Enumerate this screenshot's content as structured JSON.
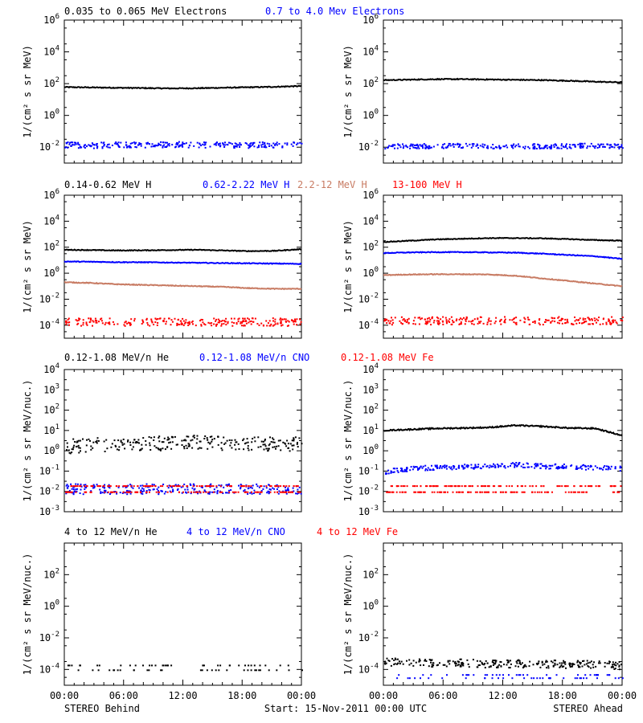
{
  "colors": {
    "black": "#000000",
    "blue": "#0000ff",
    "brown": "#c87b63",
    "red": "#ff0000"
  },
  "footer": {
    "left": "STEREO Behind",
    "center": "Start: 15-Nov-2011 00:00 UTC",
    "right": "STEREO Ahead"
  },
  "x_ticks": [
    "00:00",
    "06:00",
    "12:00",
    "18:00",
    "00:00"
  ],
  "chart_data": [
    {
      "type": "scatter",
      "row": 1,
      "position": "left",
      "scale_y": "log",
      "ylabel": "1/(cm² s sr MeV)",
      "ylim_exp": [
        -3,
        6
      ],
      "tick_exps": [
        -2,
        0,
        2,
        4,
        6
      ],
      "x": "24 h from 15-Nov-2011 00:00 UTC",
      "series": [
        {
          "name": "0.035 to 0.065 MeV Electrons",
          "color": "black",
          "legend": true,
          "style": "line",
          "log10_values": [
            1.78,
            1.76,
            1.74,
            1.72,
            1.7,
            1.71,
            1.74,
            1.77,
            1.8,
            1.85
          ]
        },
        {
          "name": "0.7 to 4.0 Mev Electrons",
          "color": "blue",
          "legend": true,
          "style": "scatter",
          "log10_values": [
            -1.8,
            -1.85,
            -1.8,
            -1.82,
            -1.78,
            -1.82,
            -1.8,
            -1.83,
            -1.8,
            -1.82
          ],
          "scatter": 0.18
        }
      ]
    },
    {
      "type": "scatter",
      "row": 1,
      "position": "right",
      "scale_y": "log",
      "ylabel": "1/(cm² s sr MeV)",
      "ylim_exp": [
        -3,
        6
      ],
      "tick_exps": [
        -2,
        0,
        2,
        4,
        6
      ],
      "x": "24 h from 15-Nov-2011 00:00 UTC",
      "series": [
        {
          "name": "0.035 to 0.065 MeV Electrons",
          "color": "black",
          "legend": false,
          "style": "line",
          "log10_values": [
            2.22,
            2.25,
            2.28,
            2.28,
            2.26,
            2.24,
            2.22,
            2.18,
            2.12,
            2.08
          ]
        },
        {
          "name": "0.7 to 4.0 Mev Electrons",
          "color": "blue",
          "legend": false,
          "style": "scatter",
          "log10_values": [
            -1.9,
            -1.88,
            -1.9,
            -1.85,
            -1.9,
            -1.88,
            -1.9,
            -1.88,
            -1.85,
            -1.9
          ],
          "scatter": 0.15
        }
      ]
    },
    {
      "type": "scatter",
      "row": 2,
      "position": "left",
      "scale_y": "log",
      "ylabel": "1/(cm² s sr MeV)",
      "ylim_exp": [
        -5,
        6
      ],
      "tick_exps": [
        -4,
        -2,
        0,
        2,
        4,
        6
      ],
      "x": "24 h from 15-Nov-2011 00:00 UTC",
      "series": [
        {
          "name": "0.14-0.62 MeV H",
          "color": "black",
          "legend": true,
          "style": "line",
          "log10_values": [
            1.8,
            1.78,
            1.75,
            1.76,
            1.78,
            1.8,
            1.75,
            1.7,
            1.72,
            1.85
          ]
        },
        {
          "name": "0.62-2.22 MeV H",
          "color": "blue",
          "legend": true,
          "style": "line",
          "log10_values": [
            0.9,
            0.88,
            0.85,
            0.84,
            0.82,
            0.8,
            0.78,
            0.76,
            0.74,
            0.72
          ]
        },
        {
          "name": "2.2-12 MeV H",
          "color": "brown",
          "legend": true,
          "style": "line",
          "log10_values": [
            -0.7,
            -0.75,
            -0.85,
            -0.9,
            -0.95,
            -1.0,
            -1.05,
            -1.15,
            -1.2,
            -1.2
          ]
        },
        {
          "name": "13-100 MeV H",
          "color": "red",
          "legend": true,
          "style": "scatter",
          "log10_values": [
            -3.7,
            -3.7,
            -3.7,
            -3.7,
            -3.7,
            -3.7,
            -3.7,
            -3.7,
            -3.7,
            -3.7
          ],
          "scatter": 0.3
        }
      ]
    },
    {
      "type": "scatter",
      "row": 2,
      "position": "right",
      "scale_y": "log",
      "ylabel": "1/(cm² s sr MeV)",
      "ylim_exp": [
        -5,
        6
      ],
      "tick_exps": [
        -4,
        -2,
        0,
        2,
        4,
        6
      ],
      "x": "24 h from 15-Nov-2011 00:00 UTC",
      "series": [
        {
          "name": "0.14-0.62 MeV H",
          "color": "black",
          "legend": false,
          "style": "line",
          "log10_values": [
            2.4,
            2.5,
            2.6,
            2.65,
            2.7,
            2.7,
            2.68,
            2.62,
            2.55,
            2.5
          ]
        },
        {
          "name": "0.62-2.22 MeV H",
          "color": "blue",
          "legend": false,
          "style": "line",
          "log10_values": [
            1.55,
            1.6,
            1.62,
            1.62,
            1.6,
            1.58,
            1.5,
            1.4,
            1.3,
            1.1
          ]
        },
        {
          "name": "2.2-12 MeV H",
          "color": "brown",
          "legend": false,
          "style": "line",
          "log10_values": [
            -0.15,
            -0.1,
            -0.08,
            -0.08,
            -0.1,
            -0.2,
            -0.4,
            -0.6,
            -0.8,
            -1.0
          ]
        },
        {
          "name": "13-100 MeV H",
          "color": "red",
          "legend": false,
          "style": "scatter",
          "log10_values": [
            -3.6,
            -3.6,
            -3.6,
            -3.6,
            -3.6,
            -3.6,
            -3.6,
            -3.6,
            -3.6,
            -3.6
          ],
          "scatter": 0.3
        }
      ]
    },
    {
      "type": "scatter",
      "row": 3,
      "position": "left",
      "scale_y": "log",
      "ylabel": "1/(cm² s sr MeV/nuc.)",
      "ylim_exp": [
        -3,
        4
      ],
      "tick_exps": [
        -3,
        -2,
        -1,
        0,
        1,
        2,
        3,
        4
      ],
      "x": "24 h from 15-Nov-2011 00:00 UTC",
      "series": [
        {
          "name": "0.12-1.08 MeV/n He",
          "color": "black",
          "legend": true,
          "style": "scatter",
          "log10_values": [
            0.25,
            0.3,
            0.4,
            0.4,
            0.4,
            0.45,
            0.42,
            0.4,
            0.35,
            0.4
          ],
          "scatter": 0.35
        },
        {
          "name": "0.12-1.08 MeV/n CNO",
          "color": "blue",
          "legend": true,
          "style": "scatter",
          "log10_values": [
            -1.85,
            -1.85,
            -1.85,
            -1.85,
            -1.85,
            -1.85,
            -1.85,
            -1.85,
            -1.85,
            -1.85
          ],
          "scatter": 0.25
        },
        {
          "name": "0.12-1.08 MeV Fe",
          "color": "red",
          "legend": true,
          "style": "band",
          "log10_values": [
            -2.0,
            -2.0,
            -2.0,
            -2.0,
            -2.0,
            -2.0,
            -2.0,
            -2.0,
            -2.0,
            -2.0
          ]
        }
      ]
    },
    {
      "type": "scatter",
      "row": 3,
      "position": "right",
      "scale_y": "log",
      "ylabel": "1/(cm² s sr MeV/nuc.)",
      "ylim_exp": [
        -3,
        4
      ],
      "tick_exps": [
        -3,
        -2,
        -1,
        0,
        1,
        2,
        3,
        4
      ],
      "x": "24 h from 15-Nov-2011 00:00 UTC",
      "series": [
        {
          "name": "0.12-1.08 MeV/n He",
          "color": "black",
          "legend": false,
          "style": "line",
          "log10_values": [
            1.0,
            1.05,
            1.1,
            1.12,
            1.15,
            1.25,
            1.2,
            1.12,
            1.1,
            0.75
          ]
        },
        {
          "name": "0.12-1.08 MeV/n CNO",
          "color": "blue",
          "legend": false,
          "style": "scatter",
          "log10_values": [
            -1.0,
            -0.85,
            -0.78,
            -0.75,
            -0.72,
            -0.65,
            -0.72,
            -0.75,
            -0.8,
            -0.85
          ],
          "scatter": 0.12
        },
        {
          "name": "0.12-1.08 MeV Fe",
          "color": "red",
          "legend": false,
          "style": "band",
          "log10_values": [
            -2.0,
            -2.0,
            -2.0,
            -2.0,
            -2.0,
            -2.0,
            -2.0,
            -2.0,
            -2.0,
            -2.0
          ]
        }
      ]
    },
    {
      "type": "scatter",
      "row": 4,
      "position": "left",
      "scale_y": "log",
      "ylabel": "1/(cm² s sr MeV/nuc.)",
      "ylim_exp": [
        -5,
        4
      ],
      "tick_exps": [
        -4,
        -2,
        0,
        2
      ],
      "x": "24 h from 15-Nov-2011 00:00 UTC",
      "series": [
        {
          "name": "4 to 12 MeV/n He",
          "color": "black",
          "legend": true,
          "style": "sparse",
          "log10_values": [
            -4.0,
            -3.7,
            -4.0,
            -3.7,
            -4.0,
            -3.7,
            -4.0,
            -3.7,
            -4.0,
            -3.7
          ]
        },
        {
          "name": "4 to 12 MeV/n CNO",
          "color": "blue",
          "legend": true,
          "style": "none",
          "log10_values": []
        },
        {
          "name": "4 to 12 MeV Fe",
          "color": "red",
          "legend": true,
          "style": "none",
          "log10_values": []
        }
      ]
    },
    {
      "type": "scatter",
      "row": 4,
      "position": "right",
      "scale_y": "log",
      "ylabel": "1/(cm² s sr MeV/nuc.)",
      "ylim_exp": [
        -5,
        4
      ],
      "tick_exps": [
        -4,
        -2,
        0,
        2
      ],
      "x": "24 h from 15-Nov-2011 00:00 UTC",
      "series": [
        {
          "name": "4 to 12 MeV/n He",
          "color": "black",
          "legend": false,
          "style": "scatter",
          "log10_values": [
            -3.5,
            -3.5,
            -3.55,
            -3.55,
            -3.6,
            -3.6,
            -3.6,
            -3.65,
            -3.65,
            -3.7
          ],
          "scatter": 0.25
        },
        {
          "name": "4 to 12 MeV/n CNO",
          "color": "blue",
          "legend": false,
          "style": "sparse",
          "log10_values": [
            -4.5,
            -4.3,
            -4.5,
            -4.3,
            -4.5,
            -4.3,
            -4.5,
            -4.3,
            -4.5,
            -4.3
          ]
        },
        {
          "name": "4 to 12 MeV Fe",
          "color": "red",
          "legend": false,
          "style": "none",
          "log10_values": []
        }
      ]
    }
  ]
}
